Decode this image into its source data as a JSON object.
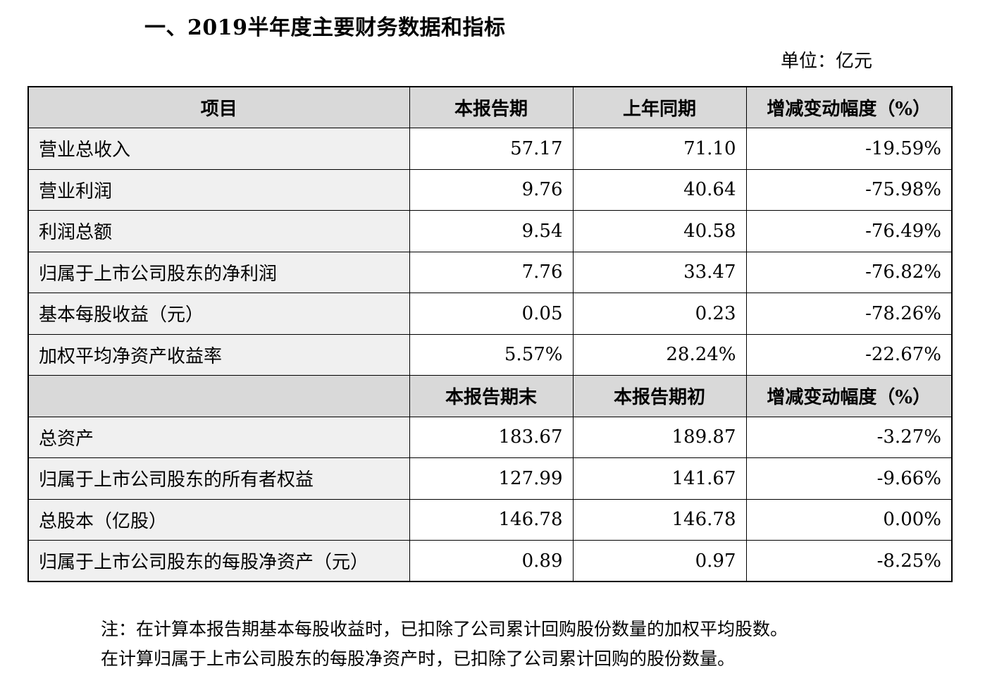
{
  "title": "一、2019半年度主要财务数据和指标",
  "unit": "单位：亿元",
  "table": {
    "header1": [
      "项目",
      "本报告期",
      "上年同期",
      "增减变动幅度（%）"
    ],
    "rows1": [
      [
        "营业总收入",
        "57.17",
        "71.10",
        "-19.59%"
      ],
      [
        "营业利润",
        "9.76",
        "40.64",
        "-75.98%"
      ],
      [
        "利润总额",
        "9.54",
        "40.58",
        "-76.49%"
      ],
      [
        "归属于上市公司股东的净利润",
        "7.76",
        "33.47",
        "-76.82%"
      ],
      [
        "基本每股收益（元）",
        "0.05",
        "0.23",
        "-78.26%"
      ],
      [
        "加权平均净资产收益率",
        "5.57%",
        "28.24%",
        "-22.67%"
      ]
    ],
    "header2": [
      "",
      "本报告期末",
      "本报告期初",
      "增减变动幅度（%）"
    ],
    "rows2": [
      [
        "总资产",
        "183.67",
        "189.87",
        "-3.27%"
      ],
      [
        "归属于上市公司股东的所有者权益",
        "127.99",
        "141.67",
        "-9.66%"
      ],
      [
        "总股本（亿股）",
        "146.78",
        "146.78",
        "0.00%"
      ],
      [
        "归属于上市公司股东的每股净资产（元）",
        "0.89",
        "0.97",
        "-8.25%"
      ]
    ]
  },
  "notes": [
    "注：在计算本报告期基本每股收益时，已扣除了公司累计回购股份数量的加权平均股数。",
    "在计算归属于上市公司股东的每股净资产时，已扣除了公司累计回购的股份数量。"
  ]
}
